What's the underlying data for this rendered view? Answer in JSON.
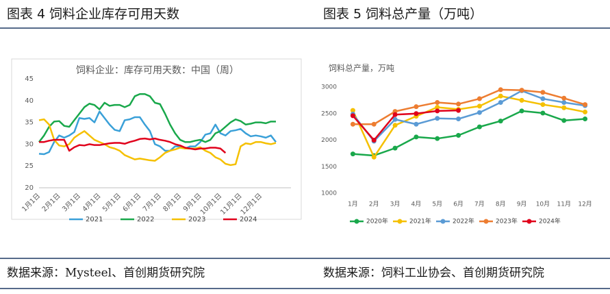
{
  "figure_titles": [
    "图表 4 饲料企业库存可用天数",
    "图表 5 饲料总产量（万吨）"
  ],
  "sources": [
    "数据来源：Mysteel、首创期货研究院",
    "数据来源：饲料工业协会、首创期货研究院"
  ],
  "chart_data": [
    {
      "type": "line",
      "title": "饲料企业：库存可用天数：中国（周）",
      "categories": [
        "1月1日",
        null,
        null,
        null,
        "2月1日",
        null,
        null,
        null,
        "3月1日",
        null,
        null,
        null,
        "4月1日",
        null,
        null,
        null,
        "5月1日",
        null,
        null,
        null,
        "6月1日",
        null,
        null,
        null,
        "7月1日",
        null,
        null,
        null,
        "8月1日",
        null,
        null,
        null,
        "9月1日",
        null,
        null,
        null,
        "10月1日",
        null,
        null,
        null,
        "11月1日",
        null,
        null,
        null,
        "12月1日",
        null,
        null,
        null
      ],
      "ylim": [
        20,
        45
      ],
      "yticks": [
        20,
        25,
        30,
        35,
        40,
        45
      ],
      "grid": false,
      "legend": "bottom",
      "markers": false,
      "series": [
        {
          "name": "2021",
          "color": "#3aa0d8",
          "values": [
            27.8,
            27.7,
            28.2,
            30.5,
            32,
            31.5,
            32,
            32.8,
            36,
            35.8,
            36,
            35,
            37.5,
            36,
            34.5,
            33.3,
            33,
            35.5,
            35.7,
            36.2,
            36.2,
            34.5,
            33,
            30,
            29.5,
            28.5,
            28.5,
            29.5,
            29.5,
            29,
            29.5,
            29.5,
            30.5,
            32.2,
            32.5,
            34.5,
            32.5,
            32,
            33,
            33.2,
            33.5,
            32.5,
            31.8,
            32,
            31.8,
            31.5,
            32,
            30.5
          ]
        },
        {
          "name": "2022",
          "color": "#19a84b",
          "values": [
            30.5,
            32,
            34,
            35.2,
            35.3,
            34.2,
            34,
            35.5,
            37,
            38.5,
            39.3,
            39,
            38,
            39.5,
            38.8,
            39,
            39,
            38.5,
            39,
            41,
            41.5,
            41.5,
            41,
            39.5,
            39.2,
            37,
            34.5,
            32.5,
            31,
            30.5,
            30.5,
            30.8,
            31,
            30.5,
            31,
            32.5,
            33,
            34,
            35,
            35.7,
            35.3,
            34.5,
            34.7,
            35,
            35,
            34.8,
            35.2,
            35.2
          ]
        },
        {
          "name": "2023",
          "color": "#f5c000",
          "values": [
            35.5,
            35.7,
            34.5,
            31,
            29.7,
            29.5,
            30,
            31.5,
            32.3,
            33,
            32,
            31,
            30.5,
            30,
            29.3,
            29,
            28.5,
            27.5,
            27,
            26.5,
            26.7,
            26.5,
            26.3,
            26.2,
            27,
            28,
            28.5,
            28.8,
            29.2,
            29,
            29,
            29,
            29.3,
            28.5,
            28,
            27,
            26.5,
            25.5,
            25.2,
            25.4,
            29.5,
            30.2,
            30,
            30.5,
            30.5,
            30.2,
            30,
            30.3
          ]
        },
        {
          "name": "2024",
          "color": "#e0001b",
          "values": [
            30.5,
            30.5,
            30.8,
            31,
            31,
            31,
            28.5,
            29.3,
            29.8,
            29.7,
            30,
            29.8,
            29.8,
            30,
            30.2,
            30.3,
            30.3,
            30.1,
            30.5,
            30.8,
            31.2,
            31.3,
            31.1,
            31.3,
            31,
            30.8,
            30.5,
            30,
            29.7,
            29.2,
            29,
            28.8,
            29,
            29,
            29.2,
            29.2,
            29,
            28,
            null,
            null,
            null,
            null,
            null,
            null,
            null,
            null,
            null,
            null
          ]
        }
      ]
    },
    {
      "type": "line",
      "title": "饲料总产量，万吨",
      "categories": [
        "1月",
        "2月",
        "3月",
        "4月",
        "5月",
        "6月",
        "7月",
        "8月",
        "9月",
        "10月",
        "11月",
        "12月"
      ],
      "ylim": [
        1000,
        3000
      ],
      "yticks": [
        1000,
        1500,
        2000,
        2500,
        3000
      ],
      "grid": false,
      "legend": "bottom",
      "markers": true,
      "series": [
        {
          "name": "2020年",
          "color": "#19a84b",
          "values": [
            1740,
            1710,
            1850,
            2060,
            2030,
            2090,
            2250,
            2360,
            2550,
            2510,
            2370,
            2400
          ]
        },
        {
          "name": "2021年",
          "color": "#f5c000",
          "values": [
            2560,
            1680,
            2280,
            2450,
            2620,
            2580,
            2640,
            2830,
            2750,
            2670,
            2610,
            2530
          ]
        },
        {
          "name": "2022年",
          "color": "#5b9bd5",
          "values": [
            2490,
            1980,
            2390,
            2300,
            2410,
            2400,
            2520,
            2710,
            2930,
            2780,
            2710,
            2650
          ]
        },
        {
          "name": "2023年",
          "color": "#ed7d31",
          "values": [
            2300,
            2300,
            2540,
            2630,
            2710,
            2680,
            2780,
            2950,
            2940,
            2900,
            2790,
            2670
          ]
        },
        {
          "name": "2024年",
          "color": "#e0001b",
          "values": [
            2460,
            2000,
            2480,
            2500,
            2550,
            2560,
            null,
            null,
            null,
            null,
            null,
            null
          ]
        }
      ]
    }
  ]
}
